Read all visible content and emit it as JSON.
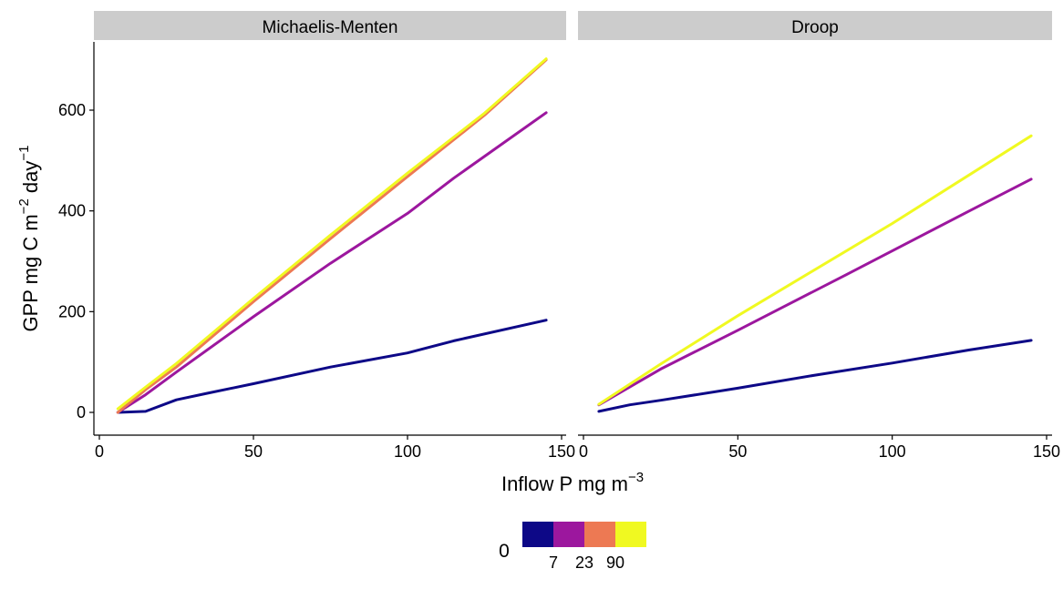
{
  "chart_data": {
    "type": "line",
    "xlabel": "Inflow P mg m",
    "xlabel_sup": "−3",
    "ylabel_parts": [
      "GPP mg C m",
      "−2",
      " day",
      "−1"
    ],
    "xlim": [
      0,
      150
    ],
    "ylim": [
      0,
      700
    ],
    "x_ticks": [
      0,
      50,
      100,
      150
    ],
    "y_ticks": [
      0,
      200,
      400,
      600
    ],
    "grid": false,
    "legend": {
      "placement": "bottom",
      "label": "0",
      "colors": [
        "#0d0887",
        "#9c179e",
        "#ed7953",
        "#f0f921"
      ],
      "tick_labels": [
        "7",
        "23",
        "90"
      ]
    },
    "panels": [
      {
        "title": "Michaelis-Menten",
        "series": [
          {
            "color": "#0d0887",
            "x": [
              6,
              15,
              25,
              35,
              50,
              75,
              100,
              115,
              145
            ],
            "y": [
              0,
              2,
              25,
              38,
              57,
              90,
              118,
              142,
              183
            ]
          },
          {
            "color": "#9c179e",
            "x": [
              6,
              15,
              25,
              50,
              75,
              100,
              115,
              145
            ],
            "y": [
              0,
              35,
              80,
              190,
              296,
              395,
              465,
              595
            ]
          },
          {
            "color": "#ed7953",
            "x": [
              6,
              15,
              25,
              50,
              75,
              100,
              125,
              145
            ],
            "y": [
              0,
              45,
              90,
              220,
              345,
              468,
              590,
              700
            ]
          },
          {
            "color": "#f0f921",
            "x": [
              6,
              15,
              25,
              50,
              75,
              100,
              125,
              145
            ],
            "y": [
              7,
              50,
              97,
              226,
              352,
              475,
              594,
              702
            ]
          }
        ]
      },
      {
        "title": "Droop",
        "series": [
          {
            "color": "#0d0887",
            "x": [
              5,
              15,
              25,
              50,
              75,
              100,
              125,
              145
            ],
            "y": [
              2,
              15,
              24,
              48,
              74,
              98,
              124,
              143
            ]
          },
          {
            "color": "#9c179e",
            "x": [
              5,
              25,
              50,
              85,
              125,
              145
            ],
            "y": [
              15,
              86,
              163,
              273,
              400,
              463
            ]
          },
          {
            "color": "#f0f921",
            "x": [
              5,
              25,
              50,
              100,
              145
            ],
            "y": [
              16,
              96,
              192,
              375,
              549
            ]
          }
        ]
      }
    ]
  }
}
